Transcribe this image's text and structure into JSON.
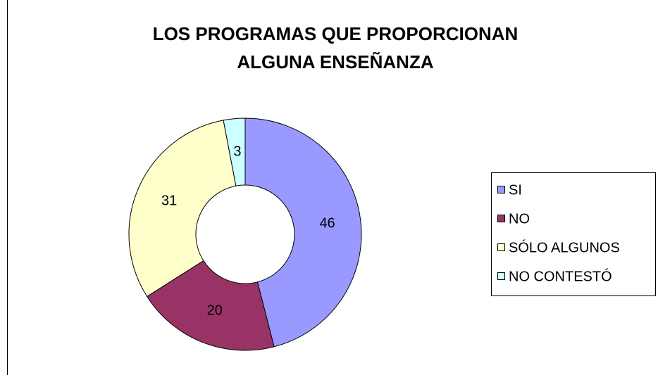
{
  "chart_data": {
    "type": "pie",
    "title": [
      "LOS PROGRAMAS QUE PROPORCIONAN",
      "ALGUNA ENSEÑANZA"
    ],
    "categories": [
      "SI",
      "NO",
      "SÓLO ALGUNOS",
      "NO CONTESTÓ"
    ],
    "values": [
      46,
      20,
      31,
      3
    ],
    "colors": [
      "#9999ff",
      "#993366",
      "#ffffcc",
      "#ccffff"
    ],
    "donut": true,
    "legend": "right"
  }
}
